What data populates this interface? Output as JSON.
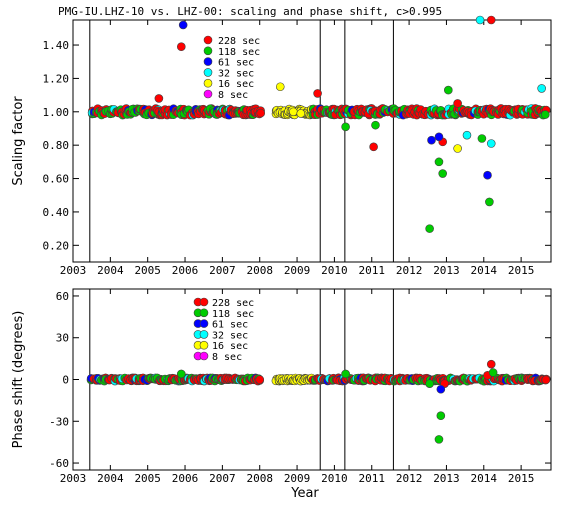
{
  "figure": {
    "title": "PMG-IU.LHZ-10 vs. LHZ-00: scaling and phase shift, c>0.995",
    "xlabel": "Year"
  },
  "legend": [
    {
      "label": "228 sec",
      "color": "#ff0000"
    },
    {
      "label": "118 sec",
      "color": "#00cc00"
    },
    {
      "label": "61 sec",
      "color": "#0000ff"
    },
    {
      "label": "32 sec",
      "color": "#00ffff"
    },
    {
      "label": "16 sec",
      "color": "#ffff00"
    },
    {
      "label": "8 sec",
      "color": "#ff00ff"
    }
  ],
  "chart_data": [
    {
      "type": "scatter",
      "panel": "top",
      "ylabel": "Scaling factor",
      "xlim": [
        2003.0,
        2015.8
      ],
      "ylim": [
        0.1,
        1.55
      ],
      "xticks": [
        "2003",
        "2004",
        "2005",
        "2006",
        "2007",
        "2008",
        "2009",
        "2010",
        "2011",
        "2012",
        "2013",
        "2014",
        "2015"
      ],
      "yticks": [
        "0.20",
        "0.40",
        "0.60",
        "0.80",
        "1.00",
        "1.20",
        "1.40"
      ],
      "vlines": [
        2003.45,
        2009.62,
        2010.28,
        2011.58
      ],
      "baseline": 1.0,
      "series": [
        {
          "name": "228 sec",
          "color": "#ff0000",
          "points": [
            [
              2005.3,
              1.08
            ],
            [
              2005.9,
              1.39
            ],
            [
              2009.55,
              1.11
            ],
            [
              2011.05,
              0.79
            ],
            [
              2012.9,
              0.82
            ],
            [
              2013.3,
              1.05
            ],
            [
              2014.2,
              1.55
            ]
          ]
        },
        {
          "name": "118 sec",
          "color": "#00cc00",
          "points": [
            [
              2010.3,
              0.91
            ],
            [
              2011.1,
              0.92
            ],
            [
              2012.55,
              0.3
            ],
            [
              2012.8,
              0.7
            ],
            [
              2012.9,
              0.63
            ],
            [
              2013.05,
              1.13
            ],
            [
              2013.95,
              0.84
            ],
            [
              2014.15,
              0.46
            ]
          ]
        },
        {
          "name": "61 sec",
          "color": "#0000ff",
          "points": [
            [
              2005.95,
              1.52
            ],
            [
              2012.6,
              0.83
            ],
            [
              2012.8,
              0.85
            ],
            [
              2014.1,
              0.62
            ]
          ]
        },
        {
          "name": "32 sec",
          "color": "#00ffff",
          "points": [
            [
              2013.55,
              0.86
            ],
            [
              2013.9,
              1.55
            ],
            [
              2014.2,
              0.81
            ],
            [
              2015.55,
              1.14
            ]
          ]
        },
        {
          "name": "16 sec",
          "color": "#ffff00",
          "points": [
            [
              2008.55,
              1.15
            ],
            [
              2008.9,
              1.0
            ],
            [
              2009.1,
              0.99
            ],
            [
              2013.3,
              0.78
            ]
          ]
        },
        {
          "name": "8 sec",
          "color": "#ff00ff",
          "points": []
        }
      ]
    },
    {
      "type": "scatter",
      "panel": "bottom",
      "ylabel": "Phase shift (degrees)",
      "xlim": [
        2003.0,
        2015.8
      ],
      "ylim": [
        -65,
        65
      ],
      "xticks": [
        "2003",
        "2004",
        "2005",
        "2006",
        "2007",
        "2008",
        "2009",
        "2010",
        "2011",
        "2012",
        "2013",
        "2014",
        "2015"
      ],
      "yticks": [
        "-60",
        "-30",
        "0",
        "30",
        "60"
      ],
      "vlines": [
        2003.45,
        2009.62,
        2010.28,
        2011.58
      ],
      "baseline": 0,
      "series": [
        {
          "name": "228 sec",
          "color": "#ff0000",
          "points": [
            [
              2014.2,
              11
            ],
            [
              2014.1,
              3
            ],
            [
              2012.95,
              -3
            ]
          ]
        },
        {
          "name": "118 sec",
          "color": "#00cc00",
          "points": [
            [
              2005.9,
              4
            ],
            [
              2010.3,
              4
            ],
            [
              2012.55,
              -3
            ],
            [
              2012.85,
              -26
            ],
            [
              2012.8,
              -43
            ],
            [
              2014.25,
              5
            ]
          ]
        },
        {
          "name": "61 sec",
          "color": "#0000ff",
          "points": [
            [
              2012.85,
              -7
            ]
          ]
        },
        {
          "name": "32 sec",
          "color": "#00ffff",
          "points": []
        },
        {
          "name": "16 sec",
          "color": "#ffff00",
          "points": []
        },
        {
          "name": "8 sec",
          "color": "#ff00ff",
          "points": []
        }
      ]
    }
  ]
}
